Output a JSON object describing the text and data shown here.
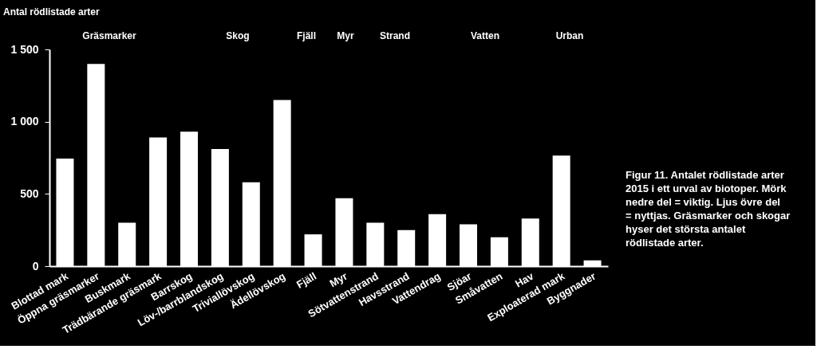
{
  "chart_data": {
    "type": "bar",
    "ylabel": "Antal rödlistade arter",
    "categories": [
      "Blottad mark",
      "Öppna gräsmarker",
      "Buskmark",
      "Trädbärande gräsmark",
      "Barrskog",
      "Löv-/barrblandskog",
      "Triviallövskog",
      "Ädellövskog",
      "Fjäll",
      "Myr",
      "Sötvattenstrand",
      "Havsstrand",
      "Vattendrag",
      "Sjöar",
      "Småvatten",
      "Hav",
      "Exploaterad mark",
      "Byggnader"
    ],
    "values": [
      745,
      1400,
      300,
      890,
      930,
      810,
      580,
      1150,
      220,
      470,
      300,
      250,
      360,
      290,
      200,
      330,
      765,
      40
    ],
    "color": "#ffffff",
    "ylim": [
      0,
      1500
    ],
    "yticks": [
      0,
      500,
      {
        "value": 1000,
        "label": "1 000"
      },
      {
        "value": 1500,
        "label": "1 500"
      }
    ],
    "grid": false,
    "annotations": [
      "Gräsmarker",
      "Skog",
      "Fjäll",
      "Myr",
      "Strand",
      "Vatten",
      "Urban",
      "Figur 11. Antalet rödlistade arter 2015 i ett urval av biotoper. Mörk nedre del = viktig. Ljus övre del = nyttjas. Gräsmarker och skogar hyser det största antalet rödlistade arter."
    ]
  }
}
